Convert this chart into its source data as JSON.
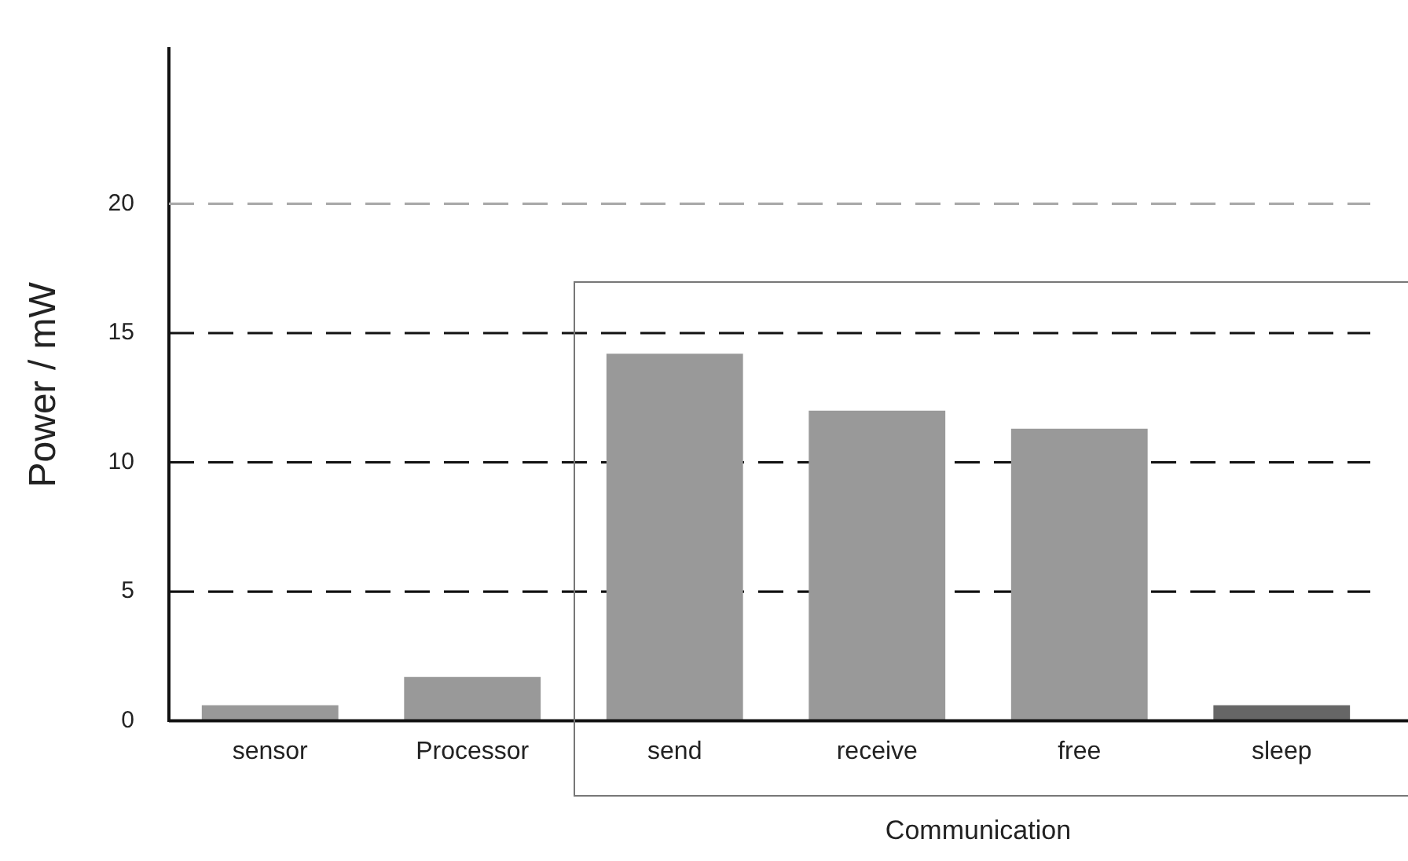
{
  "chart_data": {
    "type": "bar",
    "ylabel": "Power / mW",
    "categories": [
      "sensor",
      "Processor",
      "send",
      "receive",
      "free",
      "sleep"
    ],
    "values": [
      0.6,
      1.7,
      14.2,
      12.0,
      11.3,
      0.6
    ],
    "colors": [
      "#999999",
      "#999999",
      "#999999",
      "#999999",
      "#999999",
      "#666666"
    ],
    "ylim": [
      0,
      26
    ],
    "yticks": [
      0,
      5,
      10,
      15,
      20
    ],
    "grid": false,
    "ref_lines": [
      {
        "axis": "y",
        "value": 5,
        "color": "#111111",
        "line_style": "dashed"
      },
      {
        "axis": "y",
        "value": 10,
        "color": "#111111",
        "line_style": "dashed"
      },
      {
        "axis": "y",
        "value": 15,
        "color": "#111111",
        "line_style": "dashed"
      },
      {
        "axis": "y",
        "value": 20,
        "color": "#aaaaaa",
        "line_style": "dashed"
      }
    ],
    "annotations": [
      "Communication"
    ]
  }
}
